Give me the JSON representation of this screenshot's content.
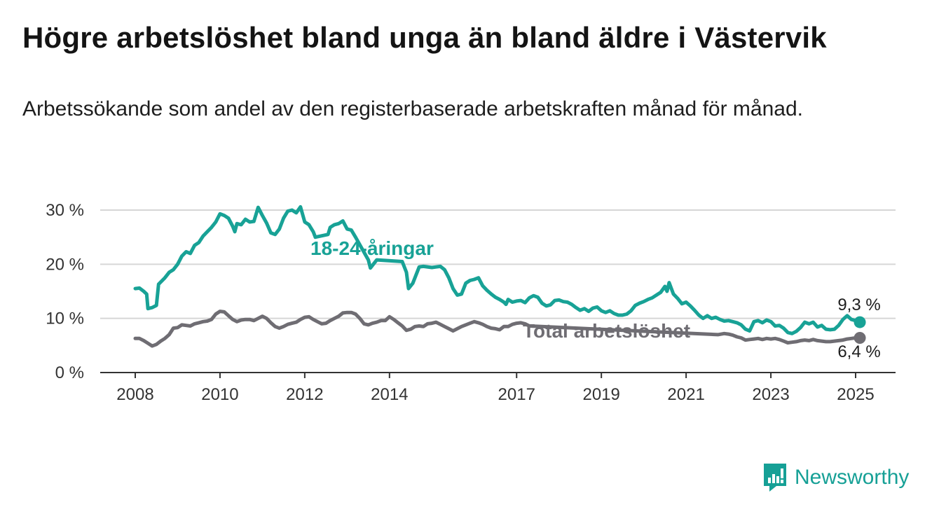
{
  "title": "Högre arbetslöshet bland unga än bland äldre i Västervik",
  "subtitle": "Arbetssökande som andel av den registerbaserade arbetskraften månad för månad.",
  "logo_text": "Newsworthy",
  "colors": {
    "youth": "#18a296",
    "total": "#6f6d73",
    "grid": "#d6d6d6",
    "axis": "#333333",
    "text": "#333333"
  },
  "chart_data": {
    "type": "line",
    "ylim": [
      0,
      30
    ],
    "xlim": [
      2008,
      2025.25
    ],
    "y_ticks": [
      {
        "value": 0,
        "label": "0 %"
      },
      {
        "value": 10,
        "label": "10 %"
      },
      {
        "value": 20,
        "label": "20 %"
      },
      {
        "value": 30,
        "label": "30 %"
      }
    ],
    "x_ticks": [
      {
        "value": 2008,
        "label": "2008"
      },
      {
        "value": 2010,
        "label": "2010"
      },
      {
        "value": 2012,
        "label": "2012"
      },
      {
        "value": 2014,
        "label": "2014"
      },
      {
        "value": 2017,
        "label": "2017"
      },
      {
        "value": 2019,
        "label": "2019"
      },
      {
        "value": 2021,
        "label": "2021"
      },
      {
        "value": 2023,
        "label": "2023"
      },
      {
        "value": 2025,
        "label": "2025"
      }
    ],
    "grid": true,
    "series": [
      {
        "name": "18-24-åringar",
        "color": "#18a296",
        "end_label": "9,3 %",
        "points": [
          [
            2008.0,
            15.5
          ],
          [
            2008.1,
            15.6
          ],
          [
            2008.2,
            15.0
          ],
          [
            2008.27,
            14.5
          ],
          [
            2008.3,
            11.8
          ],
          [
            2008.4,
            12.0
          ],
          [
            2008.5,
            12.4
          ],
          [
            2008.55,
            16.3
          ],
          [
            2008.7,
            17.5
          ],
          [
            2008.8,
            18.5
          ],
          [
            2008.9,
            19.0
          ],
          [
            2009.0,
            20.0
          ],
          [
            2009.1,
            21.5
          ],
          [
            2009.2,
            22.3
          ],
          [
            2009.3,
            22.0
          ],
          [
            2009.4,
            23.5
          ],
          [
            2009.5,
            24.0
          ],
          [
            2009.6,
            25.2
          ],
          [
            2009.7,
            26.0
          ],
          [
            2009.8,
            26.8
          ],
          [
            2009.9,
            27.8
          ],
          [
            2010.0,
            29.3
          ],
          [
            2010.1,
            29.0
          ],
          [
            2010.2,
            28.5
          ],
          [
            2010.3,
            27.0
          ],
          [
            2010.35,
            26.0
          ],
          [
            2010.4,
            27.5
          ],
          [
            2010.5,
            27.3
          ],
          [
            2010.6,
            28.3
          ],
          [
            2010.7,
            27.8
          ],
          [
            2010.8,
            27.9
          ],
          [
            2010.9,
            30.5
          ],
          [
            2011.0,
            29.0
          ],
          [
            2011.1,
            27.6
          ],
          [
            2011.2,
            25.8
          ],
          [
            2011.3,
            25.5
          ],
          [
            2011.4,
            26.5
          ],
          [
            2011.5,
            28.5
          ],
          [
            2011.6,
            29.8
          ],
          [
            2011.7,
            30.0
          ],
          [
            2011.8,
            29.5
          ],
          [
            2011.9,
            30.6
          ],
          [
            2012.0,
            27.8
          ],
          [
            2012.1,
            27.3
          ],
          [
            2012.2,
            26.0
          ],
          [
            2012.25,
            25.0
          ],
          [
            2012.55,
            25.5
          ],
          [
            2012.6,
            26.8
          ],
          [
            2012.7,
            27.3
          ],
          [
            2012.8,
            27.5
          ],
          [
            2012.9,
            28.0
          ],
          [
            2013.0,
            26.5
          ],
          [
            2013.1,
            26.3
          ],
          [
            2013.2,
            25.0
          ],
          [
            2013.5,
            20.8
          ],
          [
            2013.55,
            19.3
          ],
          [
            2013.7,
            20.8
          ],
          [
            2014.3,
            20.5
          ],
          [
            2014.4,
            18.5
          ],
          [
            2014.45,
            15.5
          ],
          [
            2014.55,
            16.5
          ],
          [
            2014.7,
            19.5
          ],
          [
            2014.8,
            19.6
          ],
          [
            2015.0,
            19.4
          ],
          [
            2015.1,
            19.5
          ],
          [
            2015.2,
            19.6
          ],
          [
            2015.3,
            19.0
          ],
          [
            2015.4,
            17.5
          ],
          [
            2015.5,
            15.5
          ],
          [
            2015.6,
            14.3
          ],
          [
            2015.7,
            14.5
          ],
          [
            2015.8,
            16.5
          ],
          [
            2015.9,
            17.0
          ],
          [
            2016.0,
            17.2
          ],
          [
            2016.1,
            17.5
          ],
          [
            2016.2,
            16.0
          ],
          [
            2016.3,
            15.2
          ],
          [
            2016.4,
            14.5
          ],
          [
            2016.5,
            13.9
          ],
          [
            2016.6,
            13.5
          ],
          [
            2016.7,
            13.0
          ],
          [
            2016.75,
            12.6
          ],
          [
            2016.8,
            13.5
          ],
          [
            2016.9,
            13.0
          ],
          [
            2017.0,
            13.2
          ],
          [
            2017.1,
            13.3
          ],
          [
            2017.2,
            12.9
          ],
          [
            2017.3,
            13.8
          ],
          [
            2017.4,
            14.2
          ],
          [
            2017.5,
            13.9
          ],
          [
            2017.6,
            12.8
          ],
          [
            2017.7,
            12.3
          ],
          [
            2017.8,
            12.5
          ],
          [
            2017.9,
            13.3
          ],
          [
            2018.0,
            13.4
          ],
          [
            2018.1,
            13.1
          ],
          [
            2018.2,
            13.0
          ],
          [
            2018.3,
            12.6
          ],
          [
            2018.4,
            12.0
          ],
          [
            2018.5,
            11.5
          ],
          [
            2018.6,
            11.8
          ],
          [
            2018.7,
            11.3
          ],
          [
            2018.8,
            11.9
          ],
          [
            2018.9,
            12.1
          ],
          [
            2019.0,
            11.4
          ],
          [
            2019.1,
            11.1
          ],
          [
            2019.2,
            11.4
          ],
          [
            2019.3,
            10.9
          ],
          [
            2019.4,
            10.6
          ],
          [
            2019.5,
            10.6
          ],
          [
            2019.6,
            10.8
          ],
          [
            2019.7,
            11.4
          ],
          [
            2019.8,
            12.4
          ],
          [
            2019.9,
            12.8
          ],
          [
            2020.0,
            13.1
          ],
          [
            2020.1,
            13.5
          ],
          [
            2020.2,
            13.8
          ],
          [
            2020.3,
            14.3
          ],
          [
            2020.4,
            14.8
          ],
          [
            2020.5,
            15.9
          ],
          [
            2020.55,
            15.0
          ],
          [
            2020.6,
            16.6
          ],
          [
            2020.7,
            14.5
          ],
          [
            2020.8,
            13.7
          ],
          [
            2020.9,
            12.7
          ],
          [
            2021.0,
            13.0
          ],
          [
            2021.1,
            12.3
          ],
          [
            2021.2,
            11.5
          ],
          [
            2021.3,
            10.6
          ],
          [
            2021.4,
            10.0
          ],
          [
            2021.5,
            10.5
          ],
          [
            2021.6,
            10.0
          ],
          [
            2021.7,
            10.2
          ],
          [
            2021.8,
            9.8
          ],
          [
            2021.9,
            9.5
          ],
          [
            2022.0,
            9.6
          ],
          [
            2022.1,
            9.4
          ],
          [
            2022.2,
            9.2
          ],
          [
            2022.3,
            8.8
          ],
          [
            2022.4,
            8.0
          ],
          [
            2022.5,
            7.7
          ],
          [
            2022.6,
            9.4
          ],
          [
            2022.7,
            9.6
          ],
          [
            2022.8,
            9.2
          ],
          [
            2022.9,
            9.7
          ],
          [
            2023.0,
            9.4
          ],
          [
            2023.1,
            8.6
          ],
          [
            2023.2,
            8.7
          ],
          [
            2023.3,
            8.2
          ],
          [
            2023.4,
            7.4
          ],
          [
            2023.5,
            7.2
          ],
          [
            2023.6,
            7.6
          ],
          [
            2023.7,
            8.3
          ],
          [
            2023.8,
            9.3
          ],
          [
            2023.9,
            9.0
          ],
          [
            2024.0,
            9.3
          ],
          [
            2024.1,
            8.4
          ],
          [
            2024.2,
            8.7
          ],
          [
            2024.3,
            8.0
          ],
          [
            2024.4,
            7.9
          ],
          [
            2024.5,
            8.0
          ],
          [
            2024.6,
            8.7
          ],
          [
            2024.7,
            9.8
          ],
          [
            2024.8,
            10.5
          ],
          [
            2024.9,
            9.8
          ],
          [
            2025.0,
            9.6
          ],
          [
            2025.1,
            9.3
          ]
        ]
      },
      {
        "name": "Total arbetslöshet",
        "color": "#6f6d73",
        "end_label": "6,4 %",
        "points": [
          [
            2008.0,
            6.3
          ],
          [
            2008.1,
            6.3
          ],
          [
            2008.2,
            5.9
          ],
          [
            2008.3,
            5.4
          ],
          [
            2008.4,
            4.9
          ],
          [
            2008.5,
            5.2
          ],
          [
            2008.6,
            5.8
          ],
          [
            2008.7,
            6.3
          ],
          [
            2008.8,
            7.0
          ],
          [
            2008.9,
            8.2
          ],
          [
            2009.0,
            8.3
          ],
          [
            2009.1,
            8.8
          ],
          [
            2009.2,
            8.7
          ],
          [
            2009.3,
            8.6
          ],
          [
            2009.4,
            9.0
          ],
          [
            2009.5,
            9.2
          ],
          [
            2009.6,
            9.4
          ],
          [
            2009.7,
            9.5
          ],
          [
            2009.8,
            9.8
          ],
          [
            2009.9,
            10.8
          ],
          [
            2010.0,
            11.3
          ],
          [
            2010.1,
            11.2
          ],
          [
            2010.2,
            10.5
          ],
          [
            2010.3,
            9.8
          ],
          [
            2010.4,
            9.4
          ],
          [
            2010.5,
            9.7
          ],
          [
            2010.6,
            9.8
          ],
          [
            2010.7,
            9.8
          ],
          [
            2010.8,
            9.6
          ],
          [
            2010.9,
            10.0
          ],
          [
            2011.0,
            10.4
          ],
          [
            2011.1,
            10.0
          ],
          [
            2011.2,
            9.2
          ],
          [
            2011.3,
            8.5
          ],
          [
            2011.4,
            8.2
          ],
          [
            2011.5,
            8.5
          ],
          [
            2011.6,
            8.9
          ],
          [
            2011.7,
            9.1
          ],
          [
            2011.8,
            9.3
          ],
          [
            2011.9,
            9.8
          ],
          [
            2012.0,
            10.2
          ],
          [
            2012.1,
            10.3
          ],
          [
            2012.2,
            9.8
          ],
          [
            2012.3,
            9.4
          ],
          [
            2012.4,
            9.0
          ],
          [
            2012.5,
            9.1
          ],
          [
            2012.6,
            9.6
          ],
          [
            2012.7,
            10.0
          ],
          [
            2012.8,
            10.4
          ],
          [
            2012.9,
            11.0
          ],
          [
            2013.0,
            11.1
          ],
          [
            2013.1,
            11.1
          ],
          [
            2013.2,
            10.8
          ],
          [
            2013.3,
            10.0
          ],
          [
            2013.4,
            9.0
          ],
          [
            2013.5,
            8.8
          ],
          [
            2013.6,
            9.1
          ],
          [
            2013.7,
            9.3
          ],
          [
            2013.8,
            9.6
          ],
          [
            2013.9,
            9.6
          ],
          [
            2014.0,
            10.3
          ],
          [
            2014.1,
            9.8
          ],
          [
            2014.2,
            9.2
          ],
          [
            2014.3,
            8.6
          ],
          [
            2014.4,
            7.8
          ],
          [
            2014.5,
            8.0
          ],
          [
            2014.6,
            8.5
          ],
          [
            2014.7,
            8.6
          ],
          [
            2014.8,
            8.5
          ],
          [
            2014.9,
            9.0
          ],
          [
            2015.0,
            9.1
          ],
          [
            2015.1,
            9.3
          ],
          [
            2015.2,
            8.9
          ],
          [
            2015.3,
            8.5
          ],
          [
            2015.4,
            8.1
          ],
          [
            2015.5,
            7.7
          ],
          [
            2015.6,
            8.1
          ],
          [
            2015.7,
            8.5
          ],
          [
            2015.8,
            8.8
          ],
          [
            2015.9,
            9.1
          ],
          [
            2016.0,
            9.4
          ],
          [
            2016.1,
            9.2
          ],
          [
            2016.2,
            8.9
          ],
          [
            2016.3,
            8.5
          ],
          [
            2016.4,
            8.2
          ],
          [
            2016.5,
            8.1
          ],
          [
            2016.6,
            7.9
          ],
          [
            2016.7,
            8.5
          ],
          [
            2016.8,
            8.5
          ],
          [
            2016.9,
            8.9
          ],
          [
            2017.0,
            9.1
          ],
          [
            2017.1,
            9.2
          ],
          [
            2017.2,
            9.0
          ],
          [
            2017.3,
            8.6
          ],
          [
            2021.75,
            7.0
          ],
          [
            2021.9,
            7.2
          ],
          [
            2022.0,
            7.1
          ],
          [
            2022.1,
            6.9
          ],
          [
            2022.2,
            6.6
          ],
          [
            2022.3,
            6.4
          ],
          [
            2022.4,
            6.0
          ],
          [
            2022.5,
            6.1
          ],
          [
            2022.6,
            6.2
          ],
          [
            2022.7,
            6.3
          ],
          [
            2022.8,
            6.1
          ],
          [
            2022.9,
            6.3
          ],
          [
            2023.0,
            6.2
          ],
          [
            2023.1,
            6.3
          ],
          [
            2023.2,
            6.1
          ],
          [
            2023.3,
            5.8
          ],
          [
            2023.4,
            5.5
          ],
          [
            2023.5,
            5.6
          ],
          [
            2023.6,
            5.7
          ],
          [
            2023.7,
            5.9
          ],
          [
            2023.8,
            6.0
          ],
          [
            2023.9,
            5.9
          ],
          [
            2024.0,
            6.1
          ],
          [
            2024.1,
            5.9
          ],
          [
            2024.2,
            5.8
          ],
          [
            2024.3,
            5.7
          ],
          [
            2024.4,
            5.7
          ],
          [
            2024.5,
            5.8
          ],
          [
            2024.6,
            5.9
          ],
          [
            2024.7,
            6.0
          ],
          [
            2024.8,
            6.2
          ],
          [
            2024.9,
            6.3
          ],
          [
            2025.0,
            6.4
          ],
          [
            2025.1,
            6.4
          ]
        ]
      }
    ]
  }
}
